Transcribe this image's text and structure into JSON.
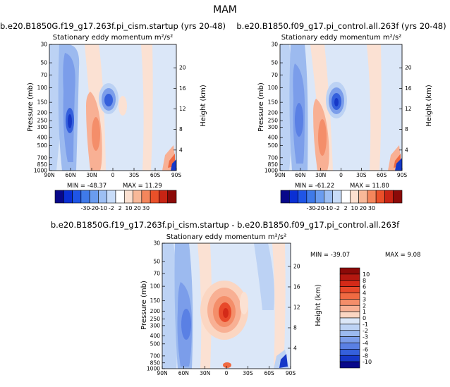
{
  "figure_title": "MAM",
  "chart_data": [
    {
      "type": "heatmap",
      "title": "b.e20.B1850G.f19_g17.263f.pi_cism.startup (yrs 20-48)",
      "subtitle": "Stationary eddy momentum m²/s²",
      "xlabel": "",
      "ylabel": "Pressure (mb)",
      "y2label": "Height (km)",
      "x_ticks": [
        "90N",
        "60N",
        "30N",
        "0",
        "30S",
        "60S",
        "90S"
      ],
      "y_ticks": [
        "30",
        "50",
        "70",
        "100",
        "150",
        "200",
        "250",
        "300",
        "400",
        "500",
        "700",
        "850",
        "1000"
      ],
      "y2_ticks": [
        "20",
        "16",
        "12",
        "8",
        "4"
      ],
      "min_label": "MIN = -48.37",
      "max_label": "MAX = 11.29",
      "colorbar_ticks": [
        "-30",
        "-20",
        "-10",
        "-2",
        "2",
        "10",
        "20",
        "30"
      ]
    },
    {
      "type": "heatmap",
      "title": "b.e20.B1850.f09_g17.pi_control.all.263f (yrs 20-48)",
      "subtitle": "Stationary eddy momentum m²/s²",
      "xlabel": "",
      "ylabel": "Pressure (mb)",
      "y2label": "Height (km)",
      "x_ticks": [
        "90N",
        "60N",
        "30N",
        "0",
        "30S",
        "60S",
        "90S"
      ],
      "y_ticks": [
        "30",
        "50",
        "70",
        "100",
        "150",
        "200",
        "250",
        "300",
        "400",
        "500",
        "700",
        "850",
        "1000"
      ],
      "y2_ticks": [
        "20",
        "16",
        "12",
        "8",
        "4"
      ],
      "min_label": "MIN = -61.22",
      "max_label": "MAX = 11.80",
      "colorbar_ticks": [
        "-30",
        "-20",
        "-10",
        "-2",
        "2",
        "10",
        "20",
        "30"
      ]
    },
    {
      "type": "heatmap",
      "title": "b.e20.B1850G.f19_g17.263f.pi_cism.startup - b.e20.B1850.f09_g17.pi_control.all.263f",
      "subtitle": "Stationary eddy momentum m²/s²",
      "xlabel": "",
      "ylabel": "Pressure (mb)",
      "y2label": "Height (km)",
      "x_ticks": [
        "90N",
        "60N",
        "30N",
        "0",
        "30S",
        "60S",
        "90S"
      ],
      "y_ticks": [
        "30",
        "50",
        "70",
        "100",
        "150",
        "200",
        "250",
        "300",
        "400",
        "500",
        "700",
        "850",
        "1000"
      ],
      "y2_ticks": [
        "20",
        "16",
        "12",
        "8",
        "4"
      ],
      "min_label": "MIN = -39.07",
      "max_label": "MAX = 9.08",
      "colorbar_ticks": [
        "10",
        "8",
        "6",
        "4",
        "3",
        "2",
        "1",
        "0",
        "-1",
        "-2",
        "-3",
        "-4",
        "-6",
        "-8",
        "-10"
      ]
    }
  ],
  "colors": {
    "cb1": [
      "#08088a",
      "#0a2fd4",
      "#1f55e6",
      "#3f7ae9",
      "#6a9cef",
      "#9dbff3",
      "#c8dcf8",
      "#ffffff",
      "#fce0d0",
      "#f8b898",
      "#f4865c",
      "#ea5029",
      "#c82414",
      "#8c0a08"
    ],
    "cb2": [
      "#8c0a08",
      "#b41810",
      "#d42a18",
      "#e8492a",
      "#f06a42",
      "#f48e6a",
      "#f8b094",
      "#fbd6c2",
      "#dbe7f8",
      "#bcd2f4",
      "#9cbaef",
      "#7b9dea",
      "#5a80e4",
      "#3560dc",
      "#1638c8",
      "#08088a"
    ],
    "bg_light_blue": "#dbe7f8",
    "light_peach": "#fbe1d3"
  }
}
